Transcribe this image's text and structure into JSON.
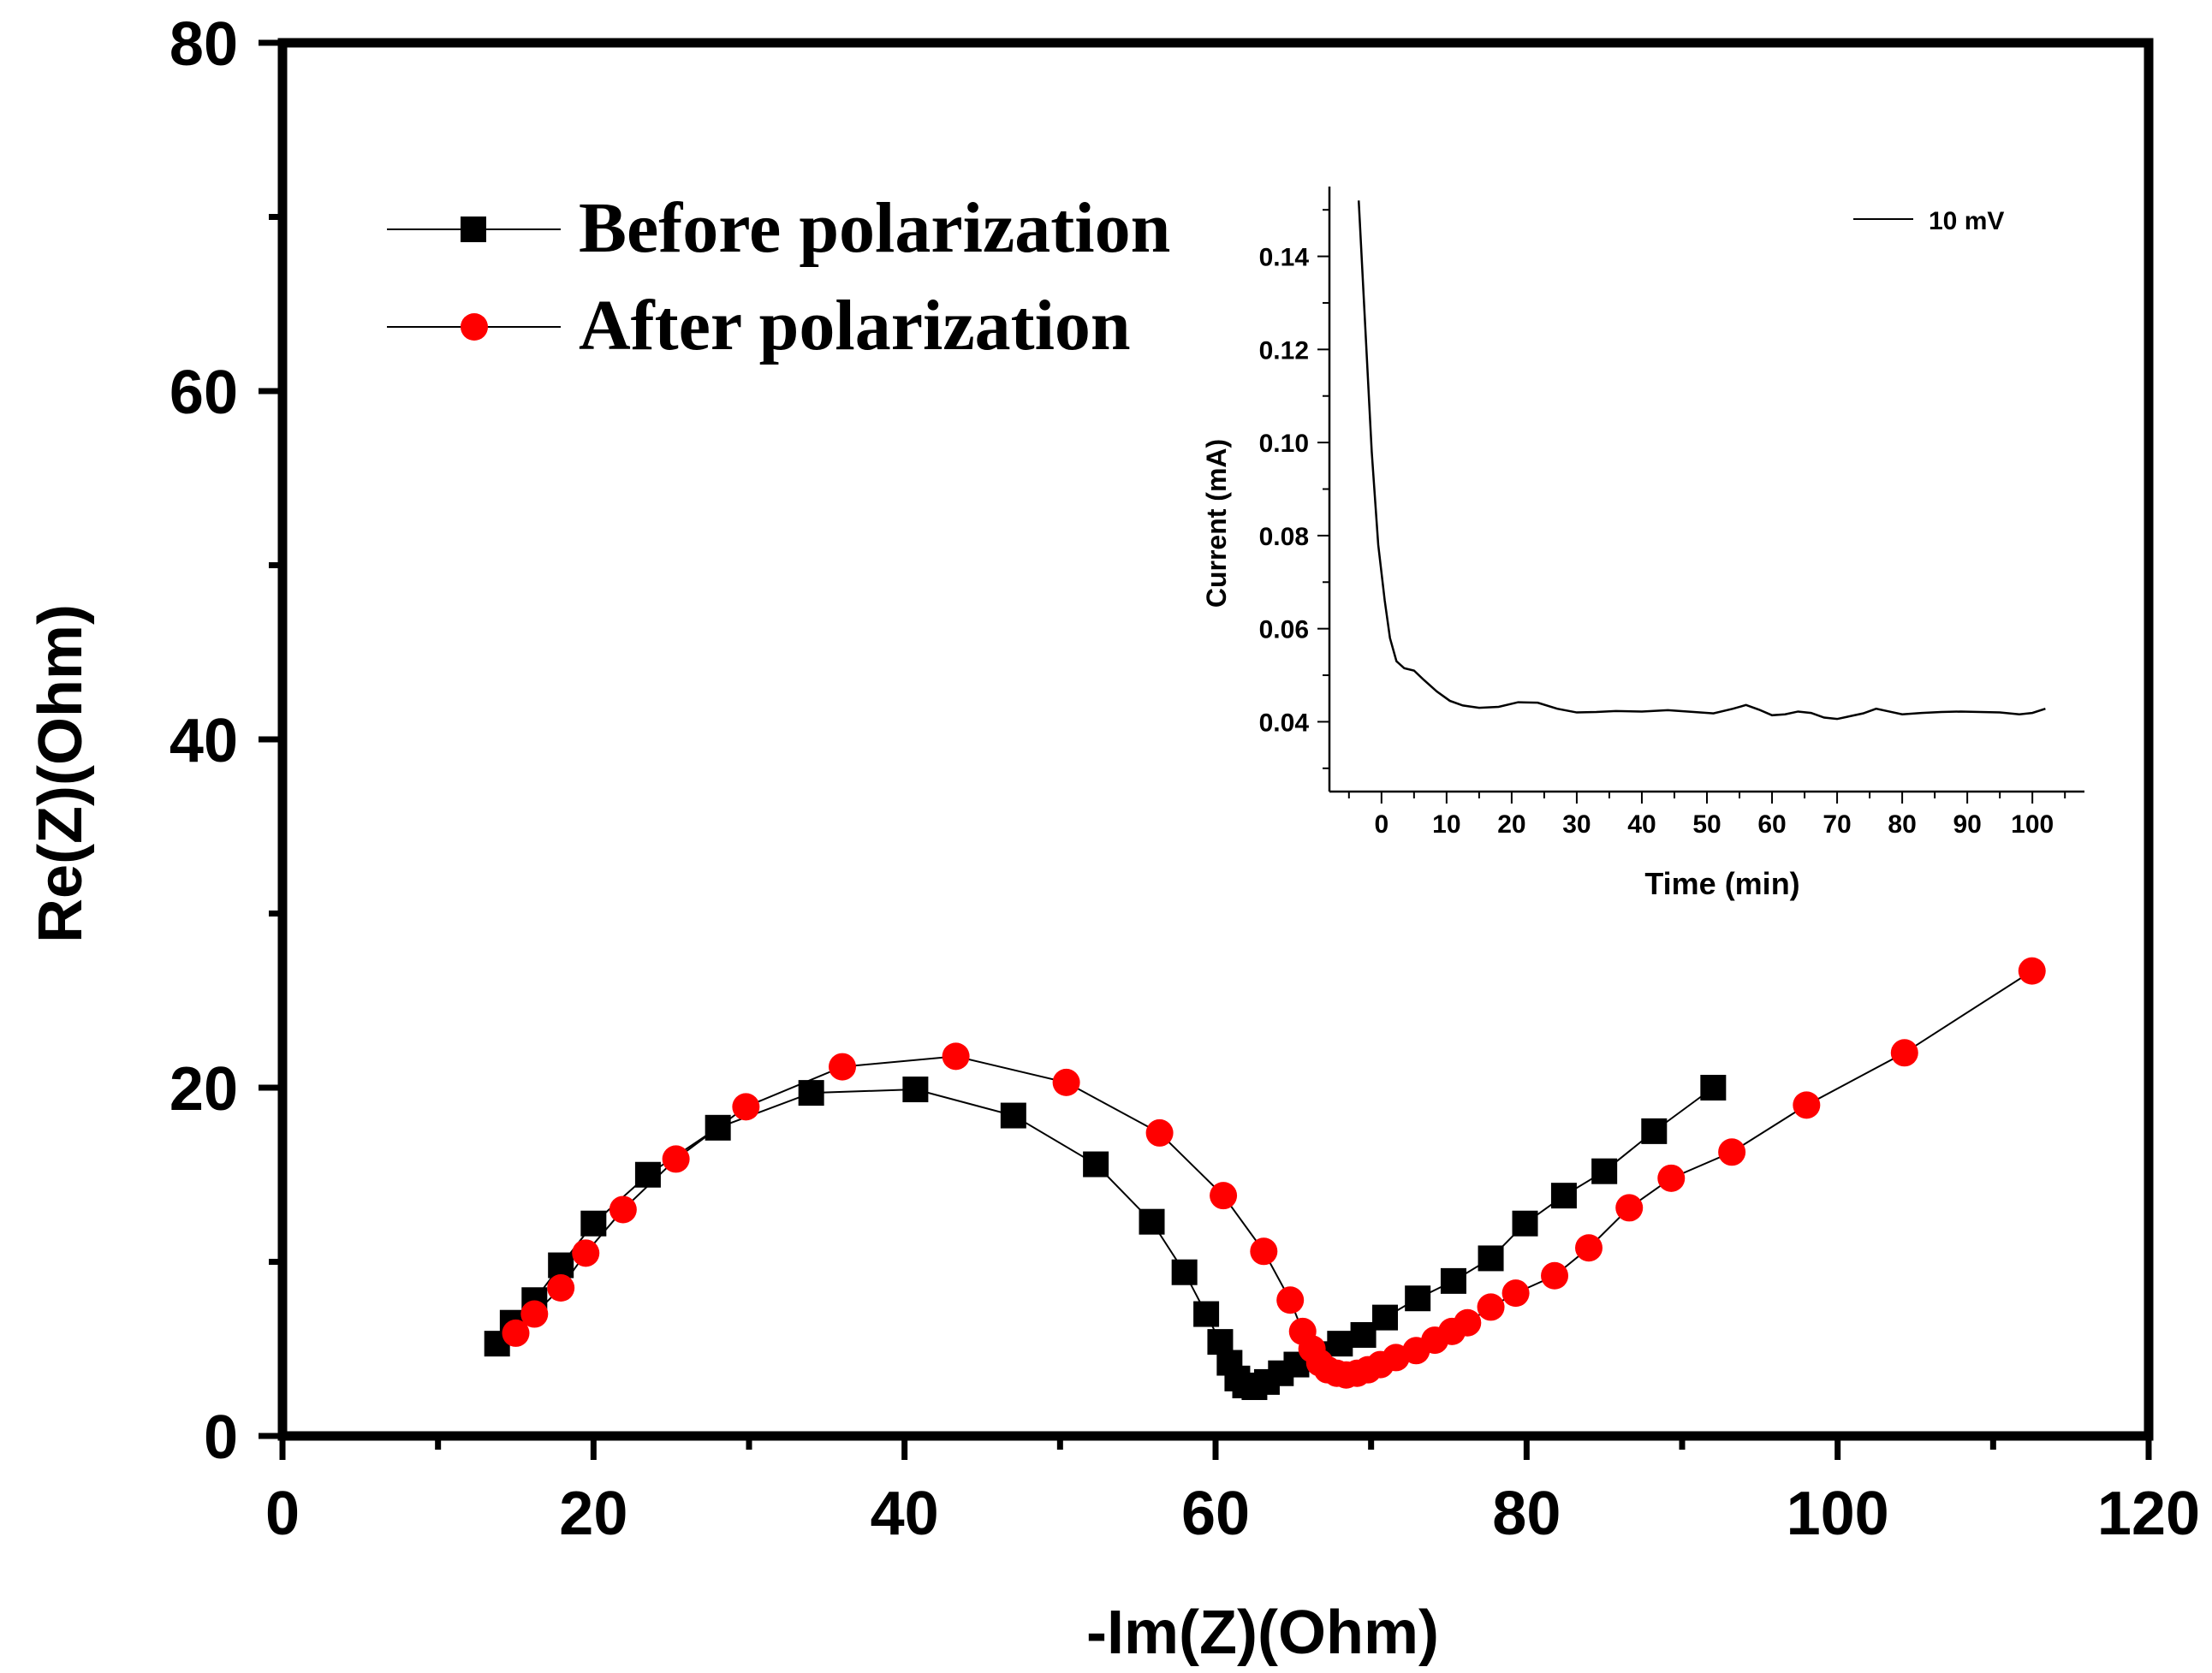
{
  "chart_data": [
    {
      "type": "scatter",
      "title": "",
      "xlabel": "-Im(Z)(Ohm)",
      "ylabel": "Re(Z)(Ohm)",
      "xlim": [
        0,
        120
      ],
      "ylim": [
        0,
        80
      ],
      "xticks": [
        "0",
        "20",
        "40",
        "60",
        "80",
        "100",
        "120"
      ],
      "yticks": [
        "0",
        "20",
        "40",
        "60",
        "80"
      ],
      "legend_position": "top-left",
      "series": [
        {
          "name": "Before polarization",
          "marker": "square",
          "color": "#000000",
          "points": [
            [
              13.8,
              5.3
            ],
            [
              14.8,
              6.5
            ],
            [
              16.2,
              7.8
            ],
            [
              17.9,
              9.8
            ],
            [
              20.0,
              12.2
            ],
            [
              23.5,
              15.0
            ],
            [
              28.0,
              17.7
            ],
            [
              34.0,
              19.7
            ],
            [
              40.7,
              19.9
            ],
            [
              47.0,
              18.4
            ],
            [
              52.3,
              15.6
            ],
            [
              55.9,
              12.3
            ],
            [
              58.0,
              9.4
            ],
            [
              59.4,
              7.0
            ],
            [
              60.3,
              5.4
            ],
            [
              60.9,
              4.2
            ],
            [
              61.4,
              3.3
            ],
            [
              61.9,
              2.9
            ],
            [
              62.5,
              2.8
            ],
            [
              63.3,
              3.1
            ],
            [
              64.2,
              3.6
            ],
            [
              65.2,
              4.1
            ],
            [
              66.5,
              4.7
            ],
            [
              68.0,
              5.3
            ],
            [
              69.5,
              5.8
            ],
            [
              70.9,
              6.8
            ],
            [
              73.0,
              7.9
            ],
            [
              75.3,
              8.9
            ],
            [
              77.7,
              10.2
            ],
            [
              79.9,
              12.2
            ],
            [
              82.4,
              13.8
            ],
            [
              85.0,
              15.2
            ],
            [
              88.2,
              17.5
            ],
            [
              92.0,
              20.0
            ]
          ]
        },
        {
          "name": "After polarization",
          "marker": "circle",
          "color": "#ff0000",
          "points": [
            [
              15.0,
              5.9
            ],
            [
              16.2,
              7.0
            ],
            [
              17.9,
              8.5
            ],
            [
              19.5,
              10.5
            ],
            [
              21.9,
              13.0
            ],
            [
              25.3,
              15.9
            ],
            [
              29.8,
              18.9
            ],
            [
              36.0,
              21.2
            ],
            [
              43.3,
              21.8
            ],
            [
              50.4,
              20.3
            ],
            [
              56.4,
              17.4
            ],
            [
              60.5,
              13.8
            ],
            [
              63.1,
              10.6
            ],
            [
              64.8,
              7.8
            ],
            [
              65.6,
              6.0
            ],
            [
              66.2,
              5.0
            ],
            [
              66.7,
              4.2
            ],
            [
              67.2,
              3.8
            ],
            [
              67.8,
              3.6
            ],
            [
              68.4,
              3.5
            ],
            [
              69.1,
              3.6
            ],
            [
              69.8,
              3.8
            ],
            [
              70.6,
              4.1
            ],
            [
              71.6,
              4.5
            ],
            [
              72.9,
              4.9
            ],
            [
              74.1,
              5.5
            ],
            [
              75.2,
              6.0
            ],
            [
              76.2,
              6.5
            ],
            [
              77.7,
              7.4
            ],
            [
              79.3,
              8.2
            ],
            [
              81.8,
              9.2
            ],
            [
              84.0,
              10.8
            ],
            [
              86.6,
              13.1
            ],
            [
              89.3,
              14.8
            ],
            [
              93.2,
              16.3
            ],
            [
              98.0,
              19.0
            ],
            [
              104.3,
              22.0
            ],
            [
              112.5,
              26.7
            ]
          ]
        }
      ],
      "legend_entries": [
        "Before polarization",
        "After polarization"
      ]
    },
    {
      "type": "line",
      "title": "",
      "xlabel": "Time (min)",
      "ylabel": "Current (mA)",
      "xlim": [
        -8,
        108
      ],
      "ylim": [
        0.025,
        0.155
      ],
      "xticks": [
        "0",
        "10",
        "20",
        "30",
        "40",
        "50",
        "60",
        "70",
        "80",
        "90",
        "100"
      ],
      "yticks": [
        "0.04",
        "0.06",
        "0.08",
        "0.10",
        "0.12",
        "0.14"
      ],
      "legend_position": "top-right",
      "legend_entries": [
        "10 mV"
      ],
      "series": [
        {
          "name": "10 mV",
          "color": "#000000",
          "points": [
            [
              -3.5,
              0.152
            ],
            [
              -2.5,
              0.125
            ],
            [
              -1.5,
              0.098
            ],
            [
              -0.5,
              0.078
            ],
            [
              0.5,
              0.066
            ],
            [
              1.3,
              0.058
            ],
            [
              2.3,
              0.053
            ],
            [
              3.5,
              0.0515
            ],
            [
              5.0,
              0.051
            ],
            [
              6.5,
              0.049
            ],
            [
              8.5,
              0.0465
            ],
            [
              10.5,
              0.0445
            ],
            [
              12.5,
              0.0435
            ],
            [
              15.0,
              0.043
            ],
            [
              18.0,
              0.0432
            ],
            [
              21.0,
              0.0442
            ],
            [
              24.0,
              0.0441
            ],
            [
              27.0,
              0.0428
            ],
            [
              30.0,
              0.042
            ],
            [
              33.0,
              0.0421
            ],
            [
              36.0,
              0.0423
            ],
            [
              40.0,
              0.0422
            ],
            [
              44.0,
              0.0425
            ],
            [
              48.0,
              0.0421
            ],
            [
              51.0,
              0.0418
            ],
            [
              54.0,
              0.0428
            ],
            [
              56.0,
              0.0436
            ],
            [
              58.0,
              0.0426
            ],
            [
              60.0,
              0.0414
            ],
            [
              62.0,
              0.0416
            ],
            [
              64.0,
              0.0422
            ],
            [
              66.0,
              0.0419
            ],
            [
              68.0,
              0.0409
            ],
            [
              70.0,
              0.0406
            ],
            [
              72.0,
              0.0412
            ],
            [
              74.0,
              0.0418
            ],
            [
              76.0,
              0.0428
            ],
            [
              78.0,
              0.0422
            ],
            [
              80.0,
              0.0416
            ],
            [
              83.0,
              0.0419
            ],
            [
              86.0,
              0.0421
            ],
            [
              89.0,
              0.0422
            ],
            [
              92.0,
              0.0421
            ],
            [
              95.0,
              0.042
            ],
            [
              98.0,
              0.0416
            ],
            [
              100.0,
              0.0419
            ],
            [
              102.0,
              0.0428
            ]
          ]
        }
      ]
    }
  ]
}
